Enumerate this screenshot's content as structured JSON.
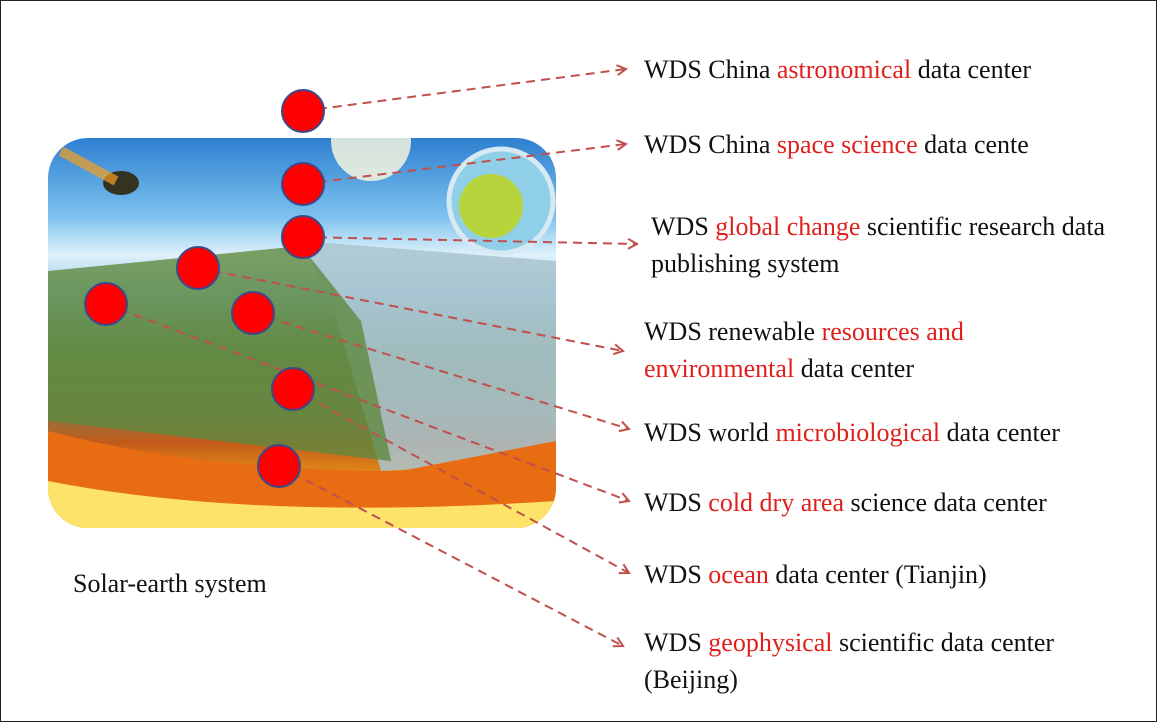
{
  "caption": "Solar-earth system",
  "labels": [
    {
      "before": "WDS China ",
      "highlight": "astronomical",
      "after": " data center"
    },
    {
      "before": "WDS China ",
      "highlight": "space science",
      "after": " data cente"
    },
    {
      "before": "WDS ",
      "highlight": "global change",
      "after": " scientific research data publishing system"
    },
    {
      "before": "WDS renewable ",
      "highlight": "resources and environmental",
      "after": " data center"
    },
    {
      "before": "WDS world ",
      "highlight": "microbiological",
      "after": " data center"
    },
    {
      "before": "WDS ",
      "highlight": "cold dry area",
      "after": " science data center"
    },
    {
      "before": "WDS ",
      "highlight": "ocean",
      "after": " data center (Tianjin)"
    },
    {
      "before": "WDS ",
      "highlight": "geophysical",
      "after": " scientific data center (Beijing)"
    }
  ]
}
